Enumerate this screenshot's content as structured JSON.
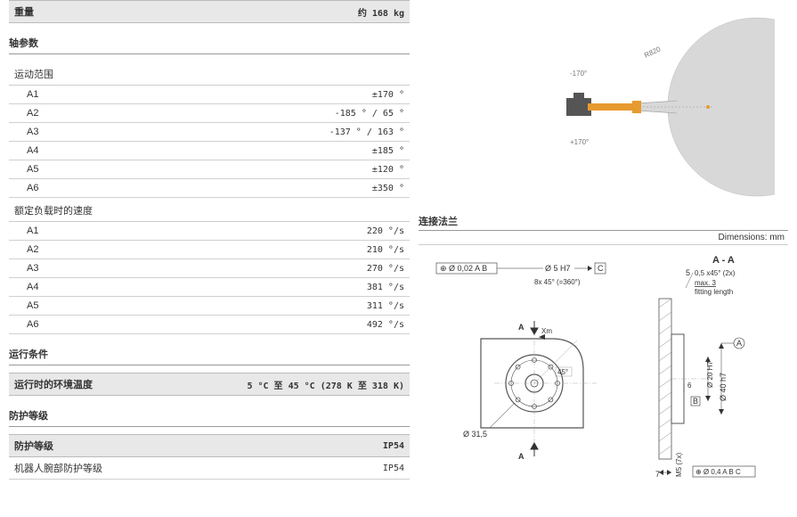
{
  "weight": {
    "label": "重量",
    "value": "约 168 kg"
  },
  "axis_params_title": "轴参数",
  "motion_range_title": "运动范围",
  "motion_range": [
    {
      "axis": "A1",
      "value": "±170 °"
    },
    {
      "axis": "A2",
      "value": "-185 ° / 65 °"
    },
    {
      "axis": "A3",
      "value": "-137 ° / 163 °"
    },
    {
      "axis": "A4",
      "value": "±185 °"
    },
    {
      "axis": "A5",
      "value": "±120 °"
    },
    {
      "axis": "A6",
      "value": "±350 °"
    }
  ],
  "rated_speed_title": "额定负载时的速度",
  "rated_speed": [
    {
      "axis": "A1",
      "value": "220 °/s"
    },
    {
      "axis": "A2",
      "value": "210 °/s"
    },
    {
      "axis": "A3",
      "value": "270 °/s"
    },
    {
      "axis": "A4",
      "value": "381 °/s"
    },
    {
      "axis": "A5",
      "value": "311 °/s"
    },
    {
      "axis": "A6",
      "value": "492 °/s"
    }
  ],
  "op_cond_title": "运行条件",
  "op_cond": {
    "label": "运行时的环境温度",
    "value": "5 °C 至 45 °C (278 K 至 318 K)"
  },
  "protection_title": "防护等级",
  "protection": [
    {
      "label": "防护等级",
      "value": "IP54"
    },
    {
      "label": "机器人腕部防护等级",
      "value": "IP54"
    }
  ],
  "flange_title": "连接法兰",
  "dimensions_note": "Dimensions: mm",
  "top_diagram": {
    "radius_label": "R820",
    "neg_angle": "-170°",
    "pos_angle": "+170°",
    "arc_color": "#d8d8d8",
    "robot_body_color": "#555",
    "robot_arm_color": "#e79a2f"
  },
  "flange_diagram": {
    "tol": "⊕ Ø 0,02 A B",
    "bore": "Ø 5 H7",
    "c_ref": "C",
    "holes": "8x 45° (=360°)",
    "angle45": "45°",
    "xm": "Xm",
    "a_top": "A",
    "a_bot": "A",
    "dia315": "Ø 31,5",
    "section_title": "A - A",
    "chamfer5": "5",
    "chamfer_desc": "0,5 x45° (2x)",
    "max3": "max. 3",
    "fitting": "fitting length",
    "d20": "Ø 20 H7",
    "d40": "Ø 40 h7",
    "a_ref": "A",
    "b_ref": "B",
    "six": "6",
    "seven": "7",
    "m5": "M5 (7x)",
    "tol2": "⊕ Ø 0,4 A B C",
    "line_color": "#555",
    "thin_color": "#999"
  }
}
